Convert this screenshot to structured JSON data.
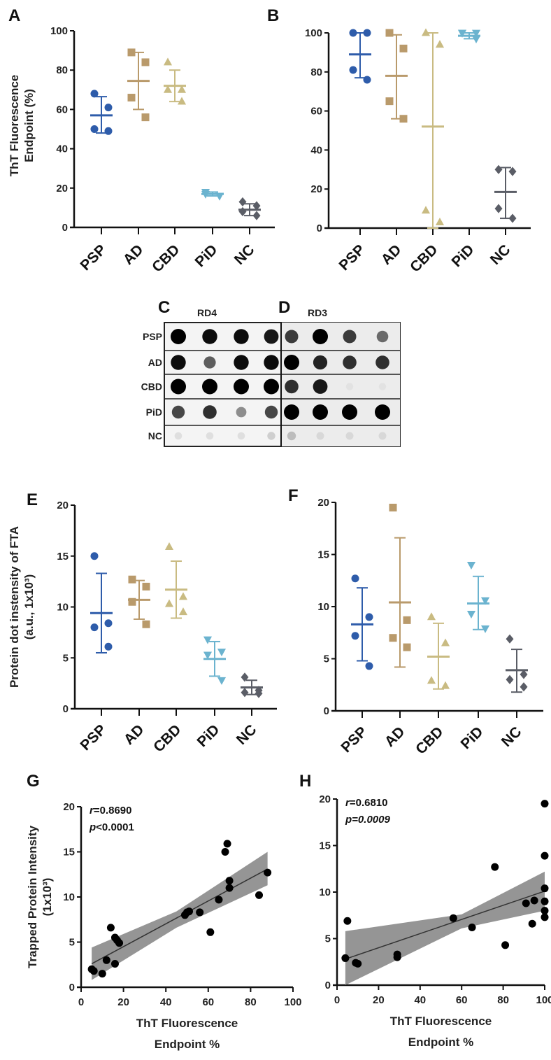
{
  "colors": {
    "PSP": "#2e5caa",
    "AD": "#b99a6b",
    "CBD": "#c9bb82",
    "PiD": "#6bb3cf",
    "NC": "#5a5d66",
    "fit_band": "#8a8a8a",
    "fit_line": "#333333"
  },
  "markers": {
    "PSP": "circle",
    "AD": "square",
    "CBD": "triangle-up",
    "PiD": "triangle-down",
    "NC": "diamond"
  },
  "chart_data": [
    {
      "panel": "A",
      "type": "scatter",
      "subtype": "dot-plot-mean-sd",
      "ylabel": [
        "ThT Fluorescence",
        "Endpoint (%)"
      ],
      "ylim": [
        0,
        100
      ],
      "yticks": [
        "0",
        "20",
        "40",
        "60",
        "80",
        "100"
      ],
      "categories": [
        "PSP",
        "AD",
        "CBD",
        "PiD",
        "NC"
      ],
      "groups": [
        {
          "name": "PSP",
          "values": [
            68,
            61,
            50,
            49
          ],
          "mean": 57,
          "sd_low": 48,
          "sd_high": 66.5
        },
        {
          "name": "AD",
          "values": [
            89,
            84,
            66,
            56
          ],
          "mean": 74.5,
          "sd_low": 60,
          "sd_high": 89
        },
        {
          "name": "CBD",
          "values": [
            84,
            70,
            70,
            64
          ],
          "mean": 72,
          "sd_low": 64,
          "sd_high": 80
        },
        {
          "name": "PiD",
          "values": [
            18,
            16,
            17,
            16
          ],
          "mean": 17,
          "sd_low": 16,
          "sd_high": 18
        },
        {
          "name": "NC",
          "values": [
            13,
            11,
            8,
            6
          ],
          "mean": 9,
          "sd_low": 6,
          "sd_high": 12
        }
      ]
    },
    {
      "panel": "B",
      "type": "scatter",
      "subtype": "dot-plot-mean-sd",
      "ylim": [
        0,
        100
      ],
      "yticks": [
        "0",
        "20",
        "40",
        "60",
        "80",
        "100"
      ],
      "categories": [
        "PSP",
        "AD",
        "CBD",
        "PiD",
        "NC"
      ],
      "groups": [
        {
          "name": "PSP",
          "values": [
            100,
            100,
            81,
            76
          ],
          "mean": 89,
          "sd_low": 77,
          "sd_high": 100
        },
        {
          "name": "AD",
          "values": [
            100,
            92,
            65,
            56
          ],
          "mean": 78,
          "sd_low": 56,
          "sd_high": 99
        },
        {
          "name": "CBD",
          "values": [
            100,
            94,
            9,
            3
          ],
          "mean": 52,
          "sd_low": 0,
          "sd_high": 100
        },
        {
          "name": "PiD",
          "values": [
            100,
            100,
            100,
            97
          ],
          "mean": 98.5,
          "sd_low": 97,
          "sd_high": 100
        },
        {
          "name": "NC",
          "values": [
            30,
            29,
            10,
            5
          ],
          "mean": 18.5,
          "sd_low": 5,
          "sd_high": 31
        }
      ]
    },
    {
      "panel": "E",
      "type": "scatter",
      "subtype": "dot-plot-mean-sd",
      "ylabel": [
        "Protein dot instensity of FTA",
        "(a.u., 1x10³)"
      ],
      "ylim": [
        0,
        20
      ],
      "yticks": [
        "0",
        "5",
        "10",
        "15",
        "20"
      ],
      "categories": [
        "PSP",
        "AD",
        "CBD",
        "PiD",
        "NC"
      ],
      "groups": [
        {
          "name": "PSP",
          "values": [
            15,
            8.4,
            8,
            6.1
          ],
          "mean": 9.4,
          "sd_low": 5.5,
          "sd_high": 13.3
        },
        {
          "name": "AD",
          "values": [
            12.7,
            12,
            10.5,
            8.3
          ],
          "mean": 10.7,
          "sd_low": 8.8,
          "sd_high": 12.6
        },
        {
          "name": "CBD",
          "values": [
            15.9,
            11,
            10.3,
            9.5
          ],
          "mean": 11.7,
          "sd_low": 8.9,
          "sd_high": 14.5
        },
        {
          "name": "PiD",
          "values": [
            6.8,
            5.6,
            5.3,
            2.8
          ],
          "mean": 4.9,
          "sd_low": 3.2,
          "sd_high": 6.6
        },
        {
          "name": "NC",
          "values": [
            3.1,
            1.8,
            1.6,
            1.5
          ],
          "mean": 2.1,
          "sd_low": 1.4,
          "sd_high": 2.8
        }
      ]
    },
    {
      "panel": "F",
      "type": "scatter",
      "subtype": "dot-plot-mean-sd",
      "ylim": [
        0,
        20
      ],
      "yticks": [
        "0",
        "5",
        "10",
        "15",
        "20"
      ],
      "categories": [
        "PSP",
        "AD",
        "CBD",
        "PiD",
        "NC"
      ],
      "groups": [
        {
          "name": "PSP",
          "values": [
            12.7,
            9.0,
            7.2,
            4.3
          ],
          "mean": 8.3,
          "sd_low": 4.8,
          "sd_high": 11.8
        },
        {
          "name": "AD",
          "values": [
            19.5,
            8.7,
            7.0,
            6.1
          ],
          "mean": 10.4,
          "sd_low": 4.2,
          "sd_high": 16.6
        },
        {
          "name": "CBD",
          "values": [
            9.0,
            6.5,
            2.9,
            2.4
          ],
          "mean": 5.2,
          "sd_low": 2.1,
          "sd_high": 8.4
        },
        {
          "name": "PiD",
          "values": [
            14,
            10.6,
            9.3,
            7.9
          ],
          "mean": 10.3,
          "sd_low": 7.8,
          "sd_high": 12.9
        },
        {
          "name": "NC",
          "values": [
            6.9,
            3.5,
            3.0,
            2.3
          ],
          "mean": 3.9,
          "sd_low": 1.8,
          "sd_high": 5.9
        }
      ]
    },
    {
      "panel": "G",
      "type": "scatter",
      "subtype": "regression-with-ci",
      "ylabel": [
        "Trapped Protein Intensity",
        "(1x10³)"
      ],
      "xlabel": [
        "ThT Fluorescence",
        "Endpoint %"
      ],
      "xlim": [
        0,
        100
      ],
      "ylim": [
        0,
        20
      ],
      "xticks": [
        "0",
        "20",
        "40",
        "60",
        "80",
        "100"
      ],
      "yticks": [
        "0",
        "5",
        "10",
        "15",
        "20"
      ],
      "annotation": {
        "r_label": "r",
        "r_value": "=0.8690",
        "p_label": "p",
        "p_value": "<0.0001"
      },
      "points": [
        [
          5,
          2
        ],
        [
          6,
          1.8
        ],
        [
          10,
          1.5
        ],
        [
          12,
          3
        ],
        [
          14,
          6.6
        ],
        [
          16,
          2.6
        ],
        [
          16,
          5.5
        ],
        [
          17,
          5.2
        ],
        [
          18,
          4.9
        ],
        [
          49,
          8
        ],
        [
          50,
          8.3
        ],
        [
          51,
          8.4
        ],
        [
          56,
          8.3
        ],
        [
          61,
          6.1
        ],
        [
          65,
          9.7
        ],
        [
          68,
          15
        ],
        [
          69,
          15.9
        ],
        [
          70,
          11
        ],
        [
          70,
          11.8
        ],
        [
          84,
          10.2
        ],
        [
          88,
          12.7
        ]
      ],
      "fit": {
        "x": [
          5,
          88
        ],
        "y": [
          2.6,
          13.1
        ]
      },
      "ci_band": {
        "x": [
          5,
          45,
          88
        ],
        "low": [
          0.8,
          6.6,
          11.3
        ],
        "high": [
          4.4,
          8.4,
          15.0
        ]
      }
    },
    {
      "panel": "H",
      "type": "scatter",
      "subtype": "regression-with-ci",
      "xlabel": [
        "ThT Fluorescence",
        "Endpoint %"
      ],
      "xlim": [
        0,
        100
      ],
      "ylim": [
        0,
        20
      ],
      "xticks": [
        "0",
        "20",
        "40",
        "60",
        "80",
        "100"
      ],
      "yticks": [
        "0",
        "5",
        "10",
        "15",
        "20"
      ],
      "annotation": {
        "r_label": "r",
        "r_value": "=0.6810",
        "p_label": "p",
        "p_value": "=0.0009"
      },
      "points": [
        [
          4,
          2.9
        ],
        [
          5,
          6.9
        ],
        [
          9,
          2.4
        ],
        [
          10,
          2.3
        ],
        [
          29,
          3.0
        ],
        [
          29,
          3.3
        ],
        [
          56,
          7.2
        ],
        [
          65,
          6.2
        ],
        [
          76,
          12.7
        ],
        [
          81,
          4.3
        ],
        [
          91,
          8.8
        ],
        [
          94,
          6.6
        ],
        [
          95,
          9.1
        ],
        [
          100,
          19.5
        ],
        [
          100,
          13.9
        ],
        [
          100,
          10.4
        ],
        [
          100,
          9.0
        ],
        [
          100,
          8.0
        ],
        [
          100,
          7.3
        ]
      ],
      "fit": {
        "x": [
          4,
          100
        ],
        "y": [
          2.8,
          10.1
        ]
      },
      "ci_band": {
        "x": [
          4,
          60,
          100
        ],
        "low": [
          0,
          6.1,
          8.0
        ],
        "high": [
          5.8,
          7.6,
          12.2
        ]
      }
    }
  ],
  "blot": {
    "panel_c": "C",
    "panel_d": "D",
    "title_c": "RD4",
    "title_d": "RD3",
    "rows": [
      "PSP",
      "AD",
      "CBD",
      "PiD",
      "NC"
    ],
    "spot_intensity_c": [
      [
        1,
        0.95,
        0.95,
        0.9
      ],
      [
        0.95,
        0.6,
        0.95,
        0.95
      ],
      [
        1,
        1,
        1,
        1
      ],
      [
        0.7,
        0.8,
        0.4,
        0.7
      ],
      [
        0.05,
        0.05,
        0.05,
        0.12
      ]
    ],
    "spot_intensity_d": [
      [
        0.75,
        1,
        0.75,
        0.55
      ],
      [
        1,
        0.85,
        0.8,
        0.8
      ],
      [
        0.8,
        0.9,
        0.04,
        0.04
      ],
      [
        1,
        1,
        1,
        1
      ],
      [
        0.2,
        0.08,
        0.08,
        0.08
      ]
    ]
  }
}
